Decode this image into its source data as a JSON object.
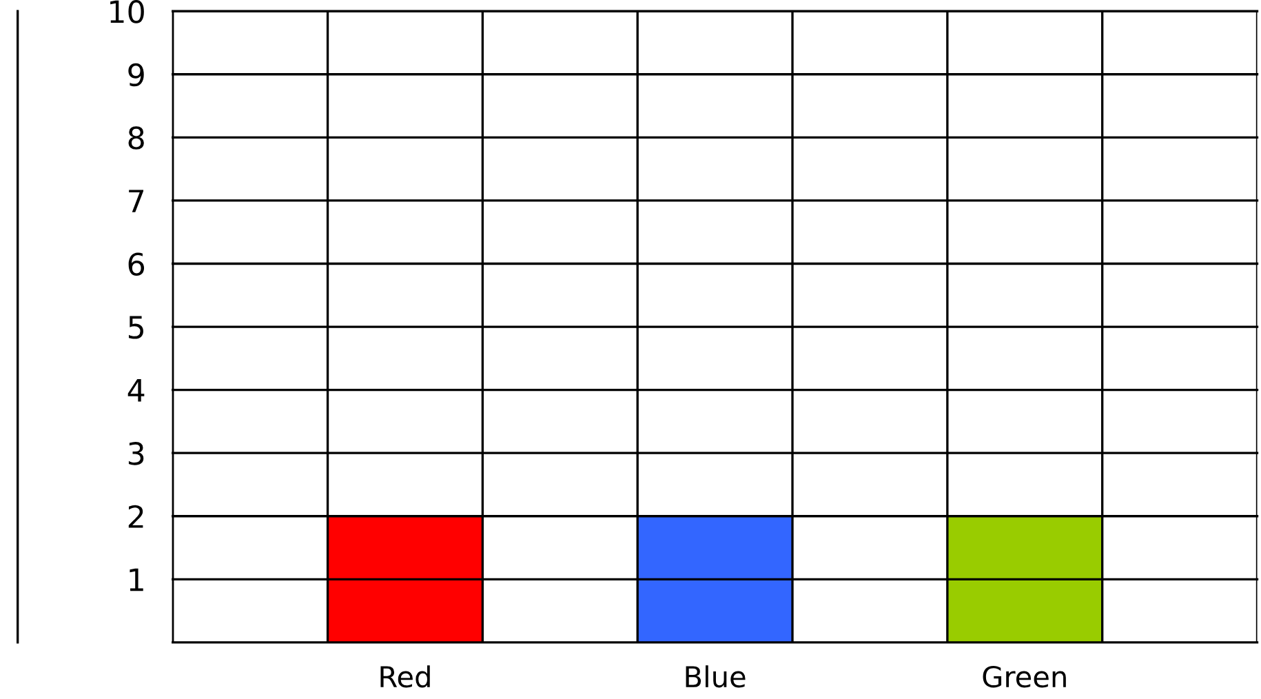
{
  "chart_data": {
    "type": "bar",
    "categories": [
      null,
      "Red",
      null,
      "Blue",
      null,
      "Green",
      null
    ],
    "values": [
      null,
      2,
      null,
      2,
      null,
      2,
      null
    ],
    "colors": [
      "#ffffff",
      "#ff0000",
      "#ffffff",
      "#3366ff",
      "#ffffff",
      "#99cc00",
      "#ffffff"
    ],
    "ylim": [
      0,
      10
    ],
    "yticks": [
      1,
      2,
      3,
      4,
      5,
      6,
      7,
      8,
      9,
      10
    ],
    "grid": true
  }
}
